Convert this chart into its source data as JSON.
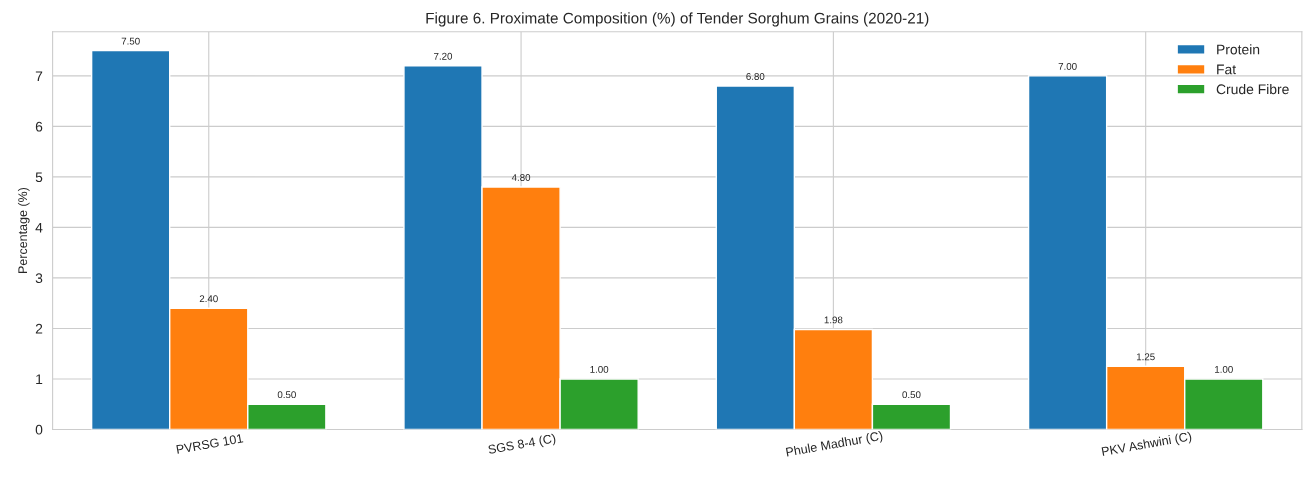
{
  "chart_data": {
    "type": "bar",
    "title": "Figure 6. Proximate Composition (%) of Tender Sorghum Grains (2020-21)",
    "ylabel": "Percentage (%)",
    "categories": [
      "PVRSG 101",
      "SGS 8-4 (C)",
      "Phule Madhur (C)",
      "PKV Ashwini (C)"
    ],
    "series": [
      {
        "name": "Protein",
        "color": "#1f77b4",
        "values": [
          7.5,
          7.2,
          6.8,
          7.0
        ],
        "value_labels": [
          "7.50",
          "7.20",
          "6.80",
          "7.00"
        ]
      },
      {
        "name": "Fat",
        "color": "#ff7f0e",
        "values": [
          2.4,
          4.8,
          1.98,
          1.25
        ],
        "value_labels": [
          "2.40",
          "4.80",
          "1.98",
          "1.25"
        ]
      },
      {
        "name": "Crude Fibre",
        "color": "#2ca02c",
        "values": [
          0.5,
          1.0,
          0.5,
          1.0
        ],
        "value_labels": [
          "0.50",
          "1.00",
          "0.50",
          "1.00"
        ]
      }
    ],
    "ylim": [
      0,
      7.875
    ],
    "yticks": [
      0,
      1,
      2,
      3,
      4,
      5,
      6,
      7
    ],
    "grid": true,
    "legend": "top right"
  }
}
